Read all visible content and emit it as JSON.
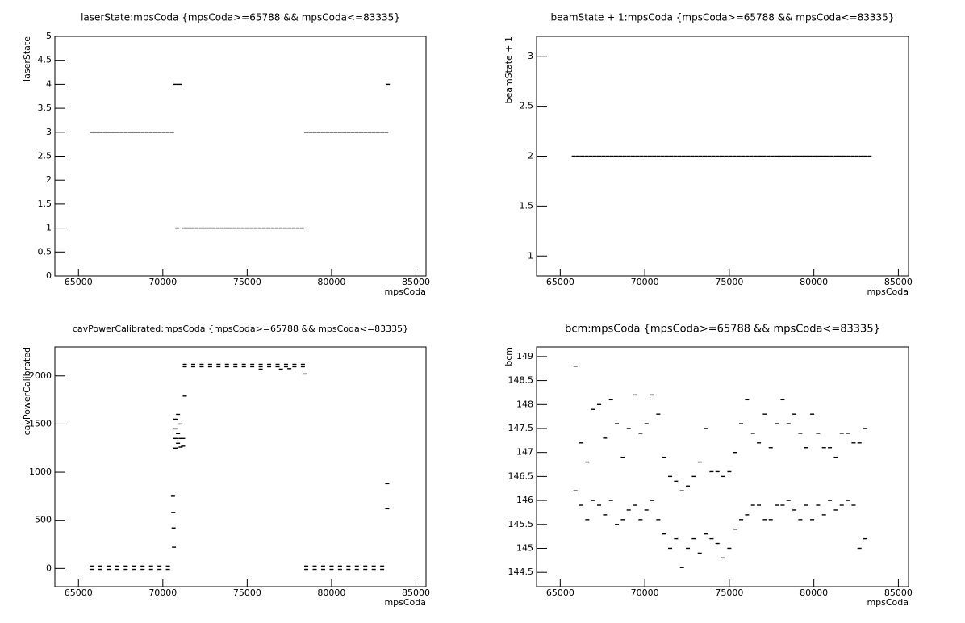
{
  "chart_data": [
    {
      "type": "scatter",
      "title": "laserState:mpsCoda {mpsCoda>=65788 && mpsCoda<=83335}",
      "x_label": "mpsCoda",
      "y_label": "laserState",
      "color": "#000000",
      "xlim": [
        63600,
        85600
      ],
      "ylim": [
        0,
        5
      ],
      "xticks": [
        65000,
        70000,
        75000,
        80000,
        85000
      ],
      "yticks": [
        0,
        0.5,
        1,
        1.5,
        2,
        2.5,
        3,
        3.5,
        4,
        4.5,
        5
      ],
      "x": [
        65800,
        66050,
        66300,
        66550,
        66800,
        67050,
        67300,
        67550,
        67800,
        68050,
        68300,
        68550,
        68800,
        69050,
        69300,
        69550,
        69800,
        70050,
        70300,
        70550,
        70750,
        71000,
        70850,
        71250,
        71500,
        71750,
        72000,
        72250,
        72500,
        72750,
        73000,
        73250,
        73500,
        73750,
        74000,
        74250,
        74500,
        74750,
        75000,
        75250,
        75500,
        75750,
        76000,
        76250,
        76500,
        76750,
        77000,
        77250,
        77500,
        77750,
        78000,
        78250,
        78500,
        78750,
        79000,
        79250,
        79500,
        79750,
        80000,
        80250,
        80500,
        80750,
        81000,
        81250,
        81500,
        81750,
        82000,
        82250,
        82500,
        82750,
        83000,
        83250,
        83335
      ],
      "values": [
        3,
        3,
        3,
        3,
        3,
        3,
        3,
        3,
        3,
        3,
        3,
        3,
        3,
        3,
        3,
        3,
        3,
        3,
        3,
        3,
        4,
        4,
        1,
        1,
        1,
        1,
        1,
        1,
        1,
        1,
        1,
        1,
        1,
        1,
        1,
        1,
        1,
        1,
        1,
        1,
        1,
        1,
        1,
        1,
        1,
        1,
        1,
        1,
        1,
        1,
        1,
        1,
        3,
        3,
        3,
        3,
        3,
        3,
        3,
        3,
        3,
        3,
        3,
        3,
        3,
        3,
        3,
        3,
        3,
        3,
        3,
        3,
        4
      ]
    },
    {
      "type": "scatter",
      "title": "beamState + 1:mpsCoda {mpsCoda>=65788 && mpsCoda<=83335}",
      "x_label": "mpsCoda",
      "y_label": "beamState + 1",
      "color": "#000000",
      "xlim": [
        63600,
        85600
      ],
      "ylim": [
        0.8,
        3.2
      ],
      "xticks": [
        65000,
        70000,
        75000,
        80000,
        85000
      ],
      "yticks": [
        1,
        1.5,
        2,
        2.5,
        3
      ],
      "x": [
        65800,
        66050,
        66300,
        66550,
        66800,
        67050,
        67300,
        67550,
        67800,
        68050,
        68300,
        68550,
        68800,
        69050,
        69300,
        69550,
        69800,
        70050,
        70300,
        70550,
        70800,
        71050,
        71300,
        71550,
        71800,
        72050,
        72300,
        72550,
        72800,
        73050,
        73300,
        73550,
        73800,
        74050,
        74300,
        74550,
        74800,
        75050,
        75300,
        75550,
        75800,
        76050,
        76300,
        76550,
        76800,
        77050,
        77300,
        77550,
        77800,
        78050,
        78300,
        78550,
        78800,
        79050,
        79300,
        79550,
        79800,
        80050,
        80300,
        80550,
        80800,
        81050,
        81300,
        81550,
        81800,
        82050,
        82300,
        82550,
        82800,
        83050,
        83300
      ],
      "values": [
        2,
        2,
        2,
        2,
        2,
        2,
        2,
        2,
        2,
        2,
        2,
        2,
        2,
        2,
        2,
        2,
        2,
        2,
        2,
        2,
        2,
        2,
        2,
        2,
        2,
        2,
        2,
        2,
        2,
        2,
        2,
        2,
        2,
        2,
        2,
        2,
        2,
        2,
        2,
        2,
        2,
        2,
        2,
        2,
        2,
        2,
        2,
        2,
        2,
        2,
        2,
        2,
        2,
        2,
        2,
        2,
        2,
        2,
        2,
        2,
        2,
        2,
        2,
        2,
        2,
        2,
        2,
        2,
        2,
        2,
        2
      ]
    },
    {
      "type": "scatter",
      "title": "cavPowerCalibrated:mpsCoda {mpsCoda>=65788 && mpsCoda<=83335}",
      "x_label": "mpsCoda",
      "y_label": "cavPowerCalibrated",
      "color": "#000000",
      "xlim": [
        63600,
        85600
      ],
      "ylim": [
        -190,
        2300
      ],
      "xticks": [
        65000,
        70000,
        75000,
        80000,
        85000
      ],
      "yticks": [
        0,
        500,
        1000,
        1500,
        2000
      ],
      "x": [
        65800,
        66300,
        66800,
        67300,
        67800,
        68300,
        68800,
        69300,
        69800,
        70300,
        65800,
        66300,
        66800,
        67300,
        67800,
        68300,
        68800,
        69300,
        69800,
        70300,
        78500,
        79000,
        79500,
        80000,
        80500,
        81000,
        81500,
        82000,
        82500,
        83000,
        78500,
        79000,
        79500,
        80000,
        80500,
        81000,
        81500,
        82000,
        82500,
        83000,
        71300,
        71800,
        72300,
        72800,
        73300,
        73800,
        74300,
        74800,
        75300,
        75800,
        76300,
        76800,
        77300,
        77800,
        78300,
        71300,
        71800,
        72300,
        72800,
        73300,
        73800,
        74300,
        74800,
        75300,
        75800,
        76300,
        76800,
        77300,
        77800,
        78300,
        70750,
        70750,
        70750,
        70750,
        70900,
        70900,
        70900,
        71050,
        71050,
        71050,
        71200,
        71200,
        70600,
        70620,
        70640,
        70660,
        71300,
        83300,
        83300,
        75800,
        77000,
        77500,
        78400
      ],
      "values": [
        25,
        25,
        25,
        25,
        25,
        25,
        25,
        25,
        25,
        25,
        -10,
        -10,
        -10,
        -10,
        -10,
        -10,
        -10,
        -10,
        -10,
        -10,
        25,
        25,
        25,
        25,
        25,
        25,
        25,
        25,
        25,
        25,
        -10,
        -10,
        -10,
        -10,
        -10,
        -10,
        -10,
        -10,
        -10,
        -10,
        2120,
        2120,
        2120,
        2120,
        2120,
        2120,
        2120,
        2120,
        2120,
        2120,
        2120,
        2120,
        2120,
        2120,
        2120,
        2095,
        2095,
        2095,
        2095,
        2095,
        2095,
        2095,
        2095,
        2095,
        2095,
        2095,
        2095,
        2095,
        2095,
        2095,
        1550,
        1450,
        1350,
        1250,
        1600,
        1400,
        1300,
        1500,
        1350,
        1260,
        1350,
        1270,
        750,
        580,
        420,
        220,
        1790,
        880,
        620,
        2070,
        2070,
        2075,
        2020
      ]
    },
    {
      "type": "scatter",
      "title": "bcm:mpsCoda {mpsCoda>=65788 && mpsCoda<=83335}",
      "x_label": "mpsCoda",
      "y_label": "bcm",
      "color": "#000000",
      "xlim": [
        63600,
        85600
      ],
      "ylim": [
        144.2,
        149.2
      ],
      "xticks": [
        65000,
        70000,
        75000,
        80000,
        85000
      ],
      "yticks": [
        144.5,
        145,
        145.5,
        146,
        146.5,
        147,
        147.5,
        148,
        148.5,
        149
      ],
      "x": [
        65900,
        66250,
        66600,
        66950,
        67300,
        67650,
        68000,
        68350,
        68700,
        69050,
        69400,
        69750,
        70100,
        70450,
        70800,
        71150,
        71500,
        71850,
        72200,
        72550,
        72900,
        73250,
        73600,
        73950,
        74300,
        74650,
        75000,
        75350,
        75700,
        76050,
        76400,
        76750,
        77100,
        77450,
        77800,
        78150,
        78500,
        78850,
        79200,
        79550,
        79900,
        80250,
        80600,
        80950,
        81300,
        81650,
        82000,
        82350,
        82700,
        83050,
        65900,
        66250,
        66600,
        66950,
        67300,
        67650,
        68000,
        68350,
        68700,
        69050,
        69400,
        69750,
        70100,
        70450,
        70800,
        71150,
        71500,
        71850,
        72200,
        72550,
        72900,
        73250,
        73600,
        73950,
        74300,
        74650,
        75000,
        75350,
        75700,
        76050,
        76400,
        76750,
        77100,
        77450,
        77800,
        78150,
        78500,
        78850,
        79200,
        79550,
        79900,
        80250,
        80600,
        80950,
        81300,
        81650,
        82000,
        82350,
        82700,
        83050
      ],
      "values": [
        148.8,
        147.2,
        146.8,
        147.9,
        148.0,
        147.3,
        148.1,
        147.6,
        146.9,
        147.5,
        148.2,
        147.4,
        147.6,
        148.2,
        147.8,
        146.9,
        146.5,
        146.4,
        146.2,
        146.3,
        146.5,
        146.8,
        147.5,
        146.6,
        146.6,
        146.5,
        146.6,
        147.0,
        147.6,
        148.1,
        147.4,
        147.2,
        147.8,
        147.1,
        147.6,
        148.1,
        147.6,
        147.8,
        147.4,
        147.1,
        147.8,
        147.4,
        147.1,
        147.1,
        146.9,
        147.4,
        147.4,
        147.2,
        147.2,
        147.5,
        146.2,
        145.9,
        145.6,
        146.0,
        145.9,
        145.7,
        146.0,
        145.5,
        145.6,
        145.8,
        145.9,
        145.6,
        145.8,
        146.0,
        145.6,
        145.3,
        145.0,
        145.2,
        144.6,
        145.0,
        145.2,
        144.9,
        145.3,
        145.2,
        145.1,
        144.8,
        145.0,
        145.4,
        145.6,
        145.7,
        145.9,
        145.9,
        145.6,
        145.6,
        145.9,
        145.9,
        146.0,
        145.8,
        145.6,
        145.9,
        145.6,
        145.9,
        145.7,
        146.0,
        145.8,
        145.9,
        146.0,
        145.9,
        145.0,
        145.2
      ]
    }
  ]
}
